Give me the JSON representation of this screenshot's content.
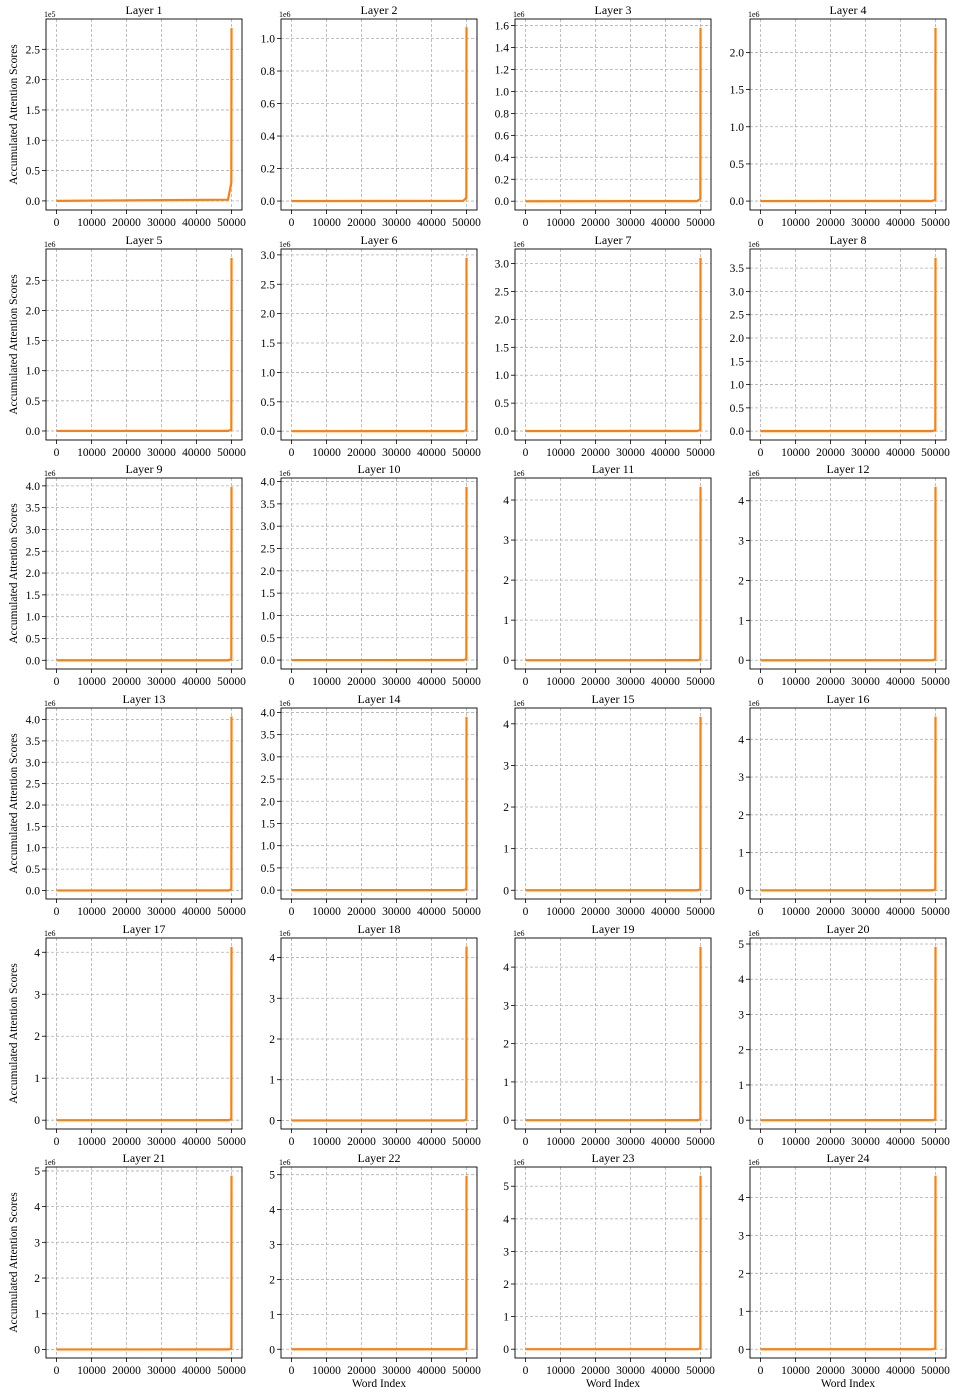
{
  "figure": {
    "ylabel": "Accumulated Attention Scores",
    "xlabel": "Word Index",
    "line_color": "#ff7f0e",
    "grid_color": "#b0b0b0"
  },
  "chart_data": [
    {
      "type": "line",
      "title": "Layer 1",
      "xlabel": "",
      "ylabel": "Accumulated Attention Scores",
      "offset_text": "1e5",
      "x": [
        0,
        49000,
        49950,
        50000
      ],
      "y": [
        0,
        0.02,
        0.3,
        2.85
      ],
      "xticks": [
        "0",
        "10000",
        "20000",
        "30000",
        "40000",
        "50000"
      ],
      "yticks": [
        "0.0",
        "0.5",
        "1.0",
        "1.5",
        "2.0",
        "2.5"
      ],
      "ytick_values": [
        0,
        0.5,
        1.0,
        1.5,
        2.0,
        2.5
      ],
      "xlim": [
        -3000,
        53000
      ],
      "ylim": [
        -0.15,
        3.0
      ],
      "grid": true
    },
    {
      "type": "line",
      "title": "Layer 2",
      "xlabel": "",
      "ylabel": "",
      "offset_text": "1e6",
      "x": [
        0,
        49000,
        49950,
        50000
      ],
      "y": [
        0,
        0.001,
        0.02,
        1.07
      ],
      "xticks": [
        "0",
        "10000",
        "20000",
        "30000",
        "40000",
        "50000"
      ],
      "yticks": [
        "0.0",
        "0.2",
        "0.4",
        "0.6",
        "0.8",
        "1.0"
      ],
      "ytick_values": [
        0,
        0.2,
        0.4,
        0.6,
        0.8,
        1.0
      ],
      "xlim": [
        -3000,
        53000
      ],
      "ylim": [
        -0.055,
        1.12
      ],
      "grid": true
    },
    {
      "type": "line",
      "title": "Layer 3",
      "xlabel": "",
      "ylabel": "",
      "offset_text": "1e6",
      "x": [
        0,
        49000,
        49950,
        50000
      ],
      "y": [
        0,
        0.001,
        0.02,
        1.58
      ],
      "xticks": [
        "0",
        "10000",
        "20000",
        "30000",
        "40000",
        "50000"
      ],
      "yticks": [
        "0.0",
        "0.2",
        "0.4",
        "0.6",
        "0.8",
        "1.0",
        "1.2",
        "1.4",
        "1.6"
      ],
      "ytick_values": [
        0,
        0.2,
        0.4,
        0.6,
        0.8,
        1.0,
        1.2,
        1.4,
        1.6
      ],
      "xlim": [
        -3000,
        53000
      ],
      "ylim": [
        -0.08,
        1.66
      ],
      "grid": true
    },
    {
      "type": "line",
      "title": "Layer 4",
      "xlabel": "",
      "ylabel": "",
      "offset_text": "1e6",
      "x": [
        0,
        49000,
        49950,
        50000
      ],
      "y": [
        0,
        0.001,
        0.02,
        2.33
      ],
      "xticks": [
        "0",
        "10000",
        "20000",
        "30000",
        "40000",
        "50000"
      ],
      "yticks": [
        "0.0",
        "0.5",
        "1.0",
        "1.5",
        "2.0"
      ],
      "ytick_values": [
        0,
        0.5,
        1.0,
        1.5,
        2.0
      ],
      "xlim": [
        -3000,
        53000
      ],
      "ylim": [
        -0.12,
        2.45
      ],
      "grid": true
    },
    {
      "type": "line",
      "title": "Layer 5",
      "xlabel": "",
      "ylabel": "Accumulated Attention Scores",
      "offset_text": "1e6",
      "x": [
        0,
        49000,
        49950,
        50000
      ],
      "y": [
        0,
        0.001,
        0.02,
        2.87
      ],
      "xticks": [
        "0",
        "10000",
        "20000",
        "30000",
        "40000",
        "50000"
      ],
      "yticks": [
        "0.0",
        "0.5",
        "1.0",
        "1.5",
        "2.0",
        "2.5"
      ],
      "ytick_values": [
        0,
        0.5,
        1.0,
        1.5,
        2.0,
        2.5
      ],
      "xlim": [
        -3000,
        53000
      ],
      "ylim": [
        -0.15,
        3.02
      ],
      "grid": true
    },
    {
      "type": "line",
      "title": "Layer 6",
      "xlabel": "",
      "ylabel": "",
      "offset_text": "1e6",
      "x": [
        0,
        49000,
        49950,
        50000
      ],
      "y": [
        0,
        0.001,
        0.02,
        2.95
      ],
      "xticks": [
        "0",
        "10000",
        "20000",
        "30000",
        "40000",
        "50000"
      ],
      "yticks": [
        "0.0",
        "0.5",
        "1.0",
        "1.5",
        "2.0",
        "2.5",
        "3.0"
      ],
      "ytick_values": [
        0,
        0.5,
        1.0,
        1.5,
        2.0,
        2.5,
        3.0
      ],
      "xlim": [
        -3000,
        53000
      ],
      "ylim": [
        -0.15,
        3.1
      ],
      "grid": true
    },
    {
      "type": "line",
      "title": "Layer 7",
      "xlabel": "",
      "ylabel": "",
      "offset_text": "1e6",
      "x": [
        0,
        49000,
        49950,
        50000
      ],
      "y": [
        0,
        0.001,
        0.02,
        3.1
      ],
      "xticks": [
        "0",
        "10000",
        "20000",
        "30000",
        "40000",
        "50000"
      ],
      "yticks": [
        "0.0",
        "0.5",
        "1.0",
        "1.5",
        "2.0",
        "2.5",
        "3.0"
      ],
      "ytick_values": [
        0,
        0.5,
        1.0,
        1.5,
        2.0,
        2.5,
        3.0
      ],
      "xlim": [
        -3000,
        53000
      ],
      "ylim": [
        -0.16,
        3.26
      ],
      "grid": true
    },
    {
      "type": "line",
      "title": "Layer 8",
      "xlabel": "",
      "ylabel": "",
      "offset_text": "1e6",
      "x": [
        0,
        49000,
        49950,
        50000
      ],
      "y": [
        0,
        0.001,
        0.02,
        3.72
      ],
      "xticks": [
        "0",
        "10000",
        "20000",
        "30000",
        "40000",
        "50000"
      ],
      "yticks": [
        "0.0",
        "0.5",
        "1.0",
        "1.5",
        "2.0",
        "2.5",
        "3.0",
        "3.5"
      ],
      "ytick_values": [
        0,
        0.5,
        1.0,
        1.5,
        2.0,
        2.5,
        3.0,
        3.5
      ],
      "xlim": [
        -3000,
        53000
      ],
      "ylim": [
        -0.19,
        3.91
      ],
      "grid": true
    },
    {
      "type": "line",
      "title": "Layer 9",
      "xlabel": "",
      "ylabel": "Accumulated Attention Scores",
      "offset_text": "1e6",
      "x": [
        0,
        49000,
        49950,
        50000
      ],
      "y": [
        0,
        0.001,
        0.02,
        3.98
      ],
      "xticks": [
        "0",
        "10000",
        "20000",
        "30000",
        "40000",
        "50000"
      ],
      "yticks": [
        "0.0",
        "0.5",
        "1.0",
        "1.5",
        "2.0",
        "2.5",
        "3.0",
        "3.5",
        "4.0"
      ],
      "ytick_values": [
        0,
        0.5,
        1.0,
        1.5,
        2.0,
        2.5,
        3.0,
        3.5,
        4.0
      ],
      "xlim": [
        -3000,
        53000
      ],
      "ylim": [
        -0.2,
        4.18
      ],
      "grid": true
    },
    {
      "type": "line",
      "title": "Layer 10",
      "xlabel": "",
      "ylabel": "",
      "offset_text": "1e6",
      "x": [
        0,
        49000,
        49950,
        50000
      ],
      "y": [
        0,
        0.001,
        0.02,
        3.88
      ],
      "xticks": [
        "0",
        "10000",
        "20000",
        "30000",
        "40000",
        "50000"
      ],
      "yticks": [
        "0.0",
        "0.5",
        "1.0",
        "1.5",
        "2.0",
        "2.5",
        "3.0",
        "3.5",
        "4.0"
      ],
      "ytick_values": [
        0,
        0.5,
        1.0,
        1.5,
        2.0,
        2.5,
        3.0,
        3.5,
        4.0
      ],
      "xlim": [
        -3000,
        53000
      ],
      "ylim": [
        -0.2,
        4.08
      ],
      "grid": true
    },
    {
      "type": "line",
      "title": "Layer 11",
      "xlabel": "",
      "ylabel": "",
      "offset_text": "1e6",
      "x": [
        0,
        49000,
        49950,
        50000
      ],
      "y": [
        0,
        0.001,
        0.02,
        4.33
      ],
      "xticks": [
        "0",
        "10000",
        "20000",
        "30000",
        "40000",
        "50000"
      ],
      "yticks": [
        "0",
        "1",
        "2",
        "3",
        "4"
      ],
      "ytick_values": [
        0,
        1,
        2,
        3,
        4
      ],
      "xlim": [
        -3000,
        53000
      ],
      "ylim": [
        -0.22,
        4.55
      ],
      "grid": true
    },
    {
      "type": "line",
      "title": "Layer 12",
      "xlabel": "",
      "ylabel": "",
      "offset_text": "1e6",
      "x": [
        0,
        49000,
        49950,
        50000
      ],
      "y": [
        0,
        0.001,
        0.02,
        4.35
      ],
      "xticks": [
        "0",
        "10000",
        "20000",
        "30000",
        "40000",
        "50000"
      ],
      "yticks": [
        "0",
        "1",
        "2",
        "3",
        "4"
      ],
      "ytick_values": [
        0,
        1,
        2,
        3,
        4
      ],
      "xlim": [
        -3000,
        53000
      ],
      "ylim": [
        -0.22,
        4.57
      ],
      "grid": true
    },
    {
      "type": "line",
      "title": "Layer 13",
      "xlabel": "",
      "ylabel": "Accumulated Attention Scores",
      "offset_text": "1e6",
      "x": [
        0,
        49000,
        49950,
        50000
      ],
      "y": [
        0,
        0.001,
        0.02,
        4.07
      ],
      "xticks": [
        "0",
        "10000",
        "20000",
        "30000",
        "40000",
        "50000"
      ],
      "yticks": [
        "0.0",
        "0.5",
        "1.0",
        "1.5",
        "2.0",
        "2.5",
        "3.0",
        "3.5",
        "4.0"
      ],
      "ytick_values": [
        0,
        0.5,
        1.0,
        1.5,
        2.0,
        2.5,
        3.0,
        3.5,
        4.0
      ],
      "xlim": [
        -3000,
        53000
      ],
      "ylim": [
        -0.2,
        4.27
      ],
      "grid": true
    },
    {
      "type": "line",
      "title": "Layer 14",
      "xlabel": "",
      "ylabel": "",
      "offset_text": "1e6",
      "x": [
        0,
        49000,
        49950,
        50000
      ],
      "y": [
        0,
        0.001,
        0.02,
        3.9
      ],
      "xticks": [
        "0",
        "10000",
        "20000",
        "30000",
        "40000",
        "50000"
      ],
      "yticks": [
        "0.0",
        "0.5",
        "1.0",
        "1.5",
        "2.0",
        "2.5",
        "3.0",
        "3.5",
        "4.0"
      ],
      "ytick_values": [
        0,
        0.5,
        1.0,
        1.5,
        2.0,
        2.5,
        3.0,
        3.5,
        4.0
      ],
      "xlim": [
        -3000,
        53000
      ],
      "ylim": [
        -0.2,
        4.1
      ],
      "grid": true
    },
    {
      "type": "line",
      "title": "Layer 15",
      "xlabel": "",
      "ylabel": "",
      "offset_text": "1e6",
      "x": [
        0,
        49000,
        49950,
        50000
      ],
      "y": [
        0,
        0.001,
        0.02,
        4.17
      ],
      "xticks": [
        "0",
        "10000",
        "20000",
        "30000",
        "40000",
        "50000"
      ],
      "yticks": [
        "0",
        "1",
        "2",
        "3",
        "4"
      ],
      "ytick_values": [
        0,
        1,
        2,
        3,
        4
      ],
      "xlim": [
        -3000,
        53000
      ],
      "ylim": [
        -0.21,
        4.38
      ],
      "grid": true
    },
    {
      "type": "line",
      "title": "Layer 16",
      "xlabel": "",
      "ylabel": "",
      "offset_text": "1e6",
      "x": [
        0,
        49000,
        49950,
        50000
      ],
      "y": [
        0,
        0.001,
        0.02,
        4.6
      ],
      "xticks": [
        "0",
        "10000",
        "20000",
        "30000",
        "40000",
        "50000"
      ],
      "yticks": [
        "0",
        "1",
        "2",
        "3",
        "4"
      ],
      "ytick_values": [
        0,
        1,
        2,
        3,
        4
      ],
      "xlim": [
        -3000,
        53000
      ],
      "ylim": [
        -0.23,
        4.83
      ],
      "grid": true
    },
    {
      "type": "line",
      "title": "Layer 17",
      "xlabel": "",
      "ylabel": "Accumulated Attention Scores",
      "offset_text": "1e6",
      "x": [
        0,
        49000,
        49950,
        50000
      ],
      "y": [
        0,
        0.001,
        0.02,
        4.13
      ],
      "xticks": [
        "0",
        "10000",
        "20000",
        "30000",
        "40000",
        "50000"
      ],
      "yticks": [
        "0",
        "1",
        "2",
        "3",
        "4"
      ],
      "ytick_values": [
        0,
        1,
        2,
        3,
        4
      ],
      "xlim": [
        -3000,
        53000
      ],
      "ylim": [
        -0.21,
        4.34
      ],
      "grid": true
    },
    {
      "type": "line",
      "title": "Layer 18",
      "xlabel": "",
      "ylabel": "",
      "offset_text": "1e6",
      "x": [
        0,
        49000,
        49950,
        50000
      ],
      "y": [
        0,
        0.001,
        0.02,
        4.27
      ],
      "xticks": [
        "0",
        "10000",
        "20000",
        "30000",
        "40000",
        "50000"
      ],
      "yticks": [
        "0",
        "1",
        "2",
        "3",
        "4"
      ],
      "ytick_values": [
        0,
        1,
        2,
        3,
        4
      ],
      "xlim": [
        -3000,
        53000
      ],
      "ylim": [
        -0.21,
        4.48
      ],
      "grid": true
    },
    {
      "type": "line",
      "title": "Layer 19",
      "xlabel": "",
      "ylabel": "",
      "offset_text": "1e6",
      "x": [
        0,
        49000,
        49950,
        50000
      ],
      "y": [
        0,
        0.001,
        0.02,
        4.53
      ],
      "xticks": [
        "0",
        "10000",
        "20000",
        "30000",
        "40000",
        "50000"
      ],
      "yticks": [
        "0",
        "1",
        "2",
        "3",
        "4"
      ],
      "ytick_values": [
        0,
        1,
        2,
        3,
        4
      ],
      "xlim": [
        -3000,
        53000
      ],
      "ylim": [
        -0.23,
        4.76
      ],
      "grid": true
    },
    {
      "type": "line",
      "title": "Layer 20",
      "xlabel": "",
      "ylabel": "",
      "offset_text": "1e6",
      "x": [
        0,
        49000,
        49950,
        50000
      ],
      "y": [
        0,
        0.001,
        0.02,
        4.92
      ],
      "xticks": [
        "0",
        "10000",
        "20000",
        "30000",
        "40000",
        "50000"
      ],
      "yticks": [
        "0",
        "1",
        "2",
        "3",
        "4",
        "5"
      ],
      "ytick_values": [
        0,
        1,
        2,
        3,
        4,
        5
      ],
      "xlim": [
        -3000,
        53000
      ],
      "ylim": [
        -0.25,
        5.17
      ],
      "grid": true
    },
    {
      "type": "line",
      "title": "Layer 21",
      "xlabel": "",
      "ylabel": "Accumulated Attention Scores",
      "offset_text": "1e6",
      "x": [
        0,
        49000,
        49950,
        50000
      ],
      "y": [
        0,
        0.001,
        0.02,
        4.87
      ],
      "xticks": [
        "0",
        "10000",
        "20000",
        "30000",
        "40000",
        "50000"
      ],
      "yticks": [
        "0",
        "1",
        "2",
        "3",
        "4",
        "5"
      ],
      "ytick_values": [
        0,
        1,
        2,
        3,
        4,
        5
      ],
      "xlim": [
        -3000,
        53000
      ],
      "ylim": [
        -0.24,
        5.11
      ],
      "grid": true
    },
    {
      "type": "line",
      "title": "Layer 22",
      "xlabel": "Word Index",
      "ylabel": "",
      "offset_text": "1e6",
      "x": [
        0,
        49000,
        49950,
        50000
      ],
      "y": [
        0,
        0.001,
        0.02,
        4.97
      ],
      "xticks": [
        "0",
        "10000",
        "20000",
        "30000",
        "40000",
        "50000"
      ],
      "yticks": [
        "0",
        "1",
        "2",
        "3",
        "4",
        "5"
      ],
      "ytick_values": [
        0,
        1,
        2,
        3,
        4,
        5
      ],
      "xlim": [
        -3000,
        53000
      ],
      "ylim": [
        -0.25,
        5.22
      ],
      "grid": true
    },
    {
      "type": "line",
      "title": "Layer 23",
      "xlabel": "Word Index",
      "ylabel": "",
      "offset_text": "1e6",
      "x": [
        0,
        49000,
        49950,
        50000
      ],
      "y": [
        0,
        0.001,
        0.02,
        5.32
      ],
      "xticks": [
        "0",
        "10000",
        "20000",
        "30000",
        "40000",
        "50000"
      ],
      "yticks": [
        "0",
        "1",
        "2",
        "3",
        "4",
        "5"
      ],
      "ytick_values": [
        0,
        1,
        2,
        3,
        4,
        5
      ],
      "xlim": [
        -3000,
        53000
      ],
      "ylim": [
        -0.27,
        5.59
      ],
      "grid": true
    },
    {
      "type": "line",
      "title": "Layer 24",
      "xlabel": "Word Index",
      "ylabel": "",
      "offset_text": "1e6",
      "x": [
        0,
        49000,
        49950,
        50000
      ],
      "y": [
        0,
        0.001,
        0.02,
        4.57
      ],
      "xticks": [
        "0",
        "10000",
        "20000",
        "30000",
        "40000",
        "50000"
      ],
      "yticks": [
        "0",
        "1",
        "2",
        "3",
        "4"
      ],
      "ytick_values": [
        0,
        1,
        2,
        3,
        4
      ],
      "xlim": [
        -3000,
        53000
      ],
      "ylim": [
        -0.23,
        4.8
      ],
      "grid": true
    }
  ]
}
